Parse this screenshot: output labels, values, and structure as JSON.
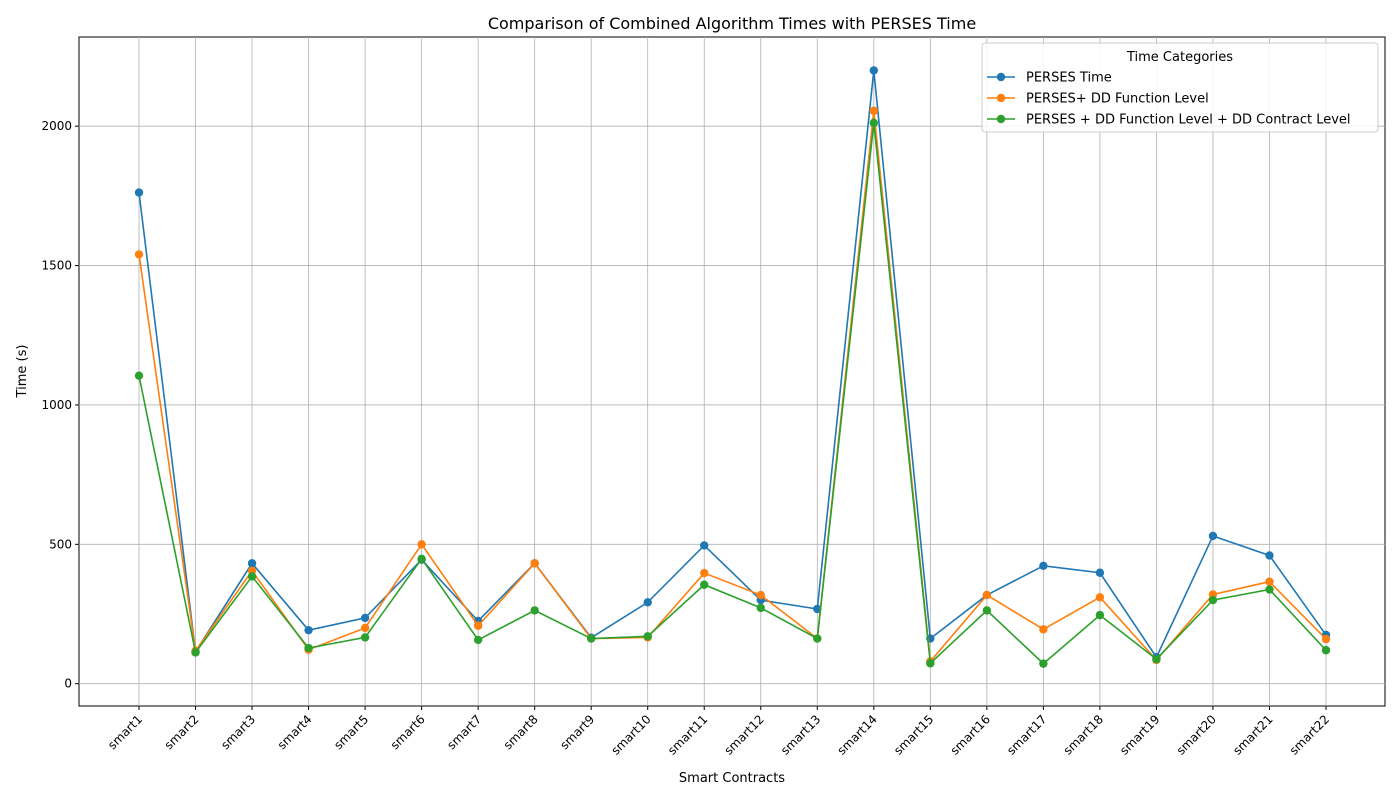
{
  "chart_data": {
    "type": "line",
    "title": "Comparison of Combined Algorithm Times with PERSES Time",
    "xlabel": "Smart Contracts",
    "ylabel": "Time (s)",
    "ylim": [
      -80,
      2320
    ],
    "yticks": [
      0,
      500,
      1000,
      1500,
      2000
    ],
    "grid": true,
    "legend": {
      "title": "Time Categories",
      "placement": "top-right"
    },
    "categories": [
      "smart1",
      "smart2",
      "smart3",
      "smart4",
      "smart5",
      "smart6",
      "smart7",
      "smart8",
      "smart9",
      "smart10",
      "smart11",
      "smart12",
      "smart13",
      "smart14",
      "smart15",
      "smart16",
      "smart17",
      "smart18",
      "smart19",
      "smart20",
      "smart21",
      "smart22"
    ],
    "series": [
      {
        "name": "PERSES Time",
        "color": "#1f77b4",
        "values": [
          1762,
          115,
          432,
          192,
          236,
          445,
          225,
          432,
          165,
          292,
          496,
          300,
          268,
          2200,
          162,
          318,
          423,
          398,
          95,
          530,
          460,
          175
        ]
      },
      {
        "name": "PERSES+ DD Function Level",
        "color": "#ff7f0e",
        "values": [
          1540,
          118,
          405,
          122,
          200,
          500,
          208,
          432,
          162,
          166,
          397,
          318,
          162,
          2055,
          80,
          318,
          195,
          310,
          85,
          320,
          366,
          160
        ]
      },
      {
        "name": "PERSES + DD Function Level + DD Contract Level",
        "color": "#2ca02c",
        "values": [
          1105,
          112,
          385,
          128,
          166,
          448,
          157,
          263,
          162,
          170,
          355,
          272,
          162,
          2012,
          73,
          263,
          72,
          246,
          88,
          300,
          338,
          120
        ]
      }
    ]
  }
}
